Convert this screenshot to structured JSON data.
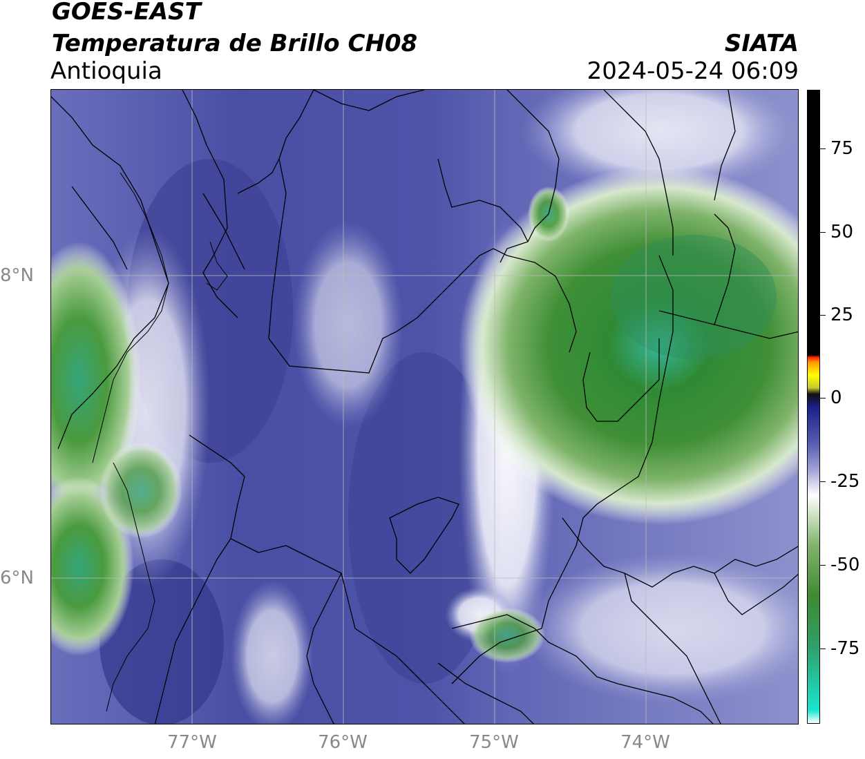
{
  "header": {
    "satellite": "GOES-EAST",
    "product": "Temperatura de Brillo CH08",
    "region": "Antioquia",
    "organization": "SIATA",
    "datetime": "2024-05-24 06:09"
  },
  "map": {
    "lat_labels": [
      "8°N",
      "6°N"
    ],
    "lon_labels": [
      "77°W",
      "76°W",
      "75°W",
      "74°W"
    ],
    "colors": {
      "deep_purple": "#3b3f96",
      "purple": "#5a5fb2",
      "lavender": "#9a9ed4",
      "white": "#ffffff",
      "light_green": "#a8cf98",
      "green": "#4a9a3e",
      "dark_green": "#2f7d2b",
      "teal": "#35b59a",
      "border": "#000000",
      "grid": "#bbbbbb"
    }
  },
  "colorbar": {
    "tick_labels": [
      "75",
      "50",
      "25",
      "0",
      "-25",
      "-50",
      "-75"
    ],
    "stops": [
      "#ffffff",
      "#19e6d2",
      "#2fa06a",
      "#3e8a33",
      "#7fb36a",
      "#cfe2c4",
      "#ffffff",
      "#a0a4d6",
      "#5a5fb2",
      "#1a1f8a",
      "#101010",
      "#c8c832",
      "#ffff00",
      "#ff9900",
      "#ff2a00",
      "#000000"
    ]
  }
}
